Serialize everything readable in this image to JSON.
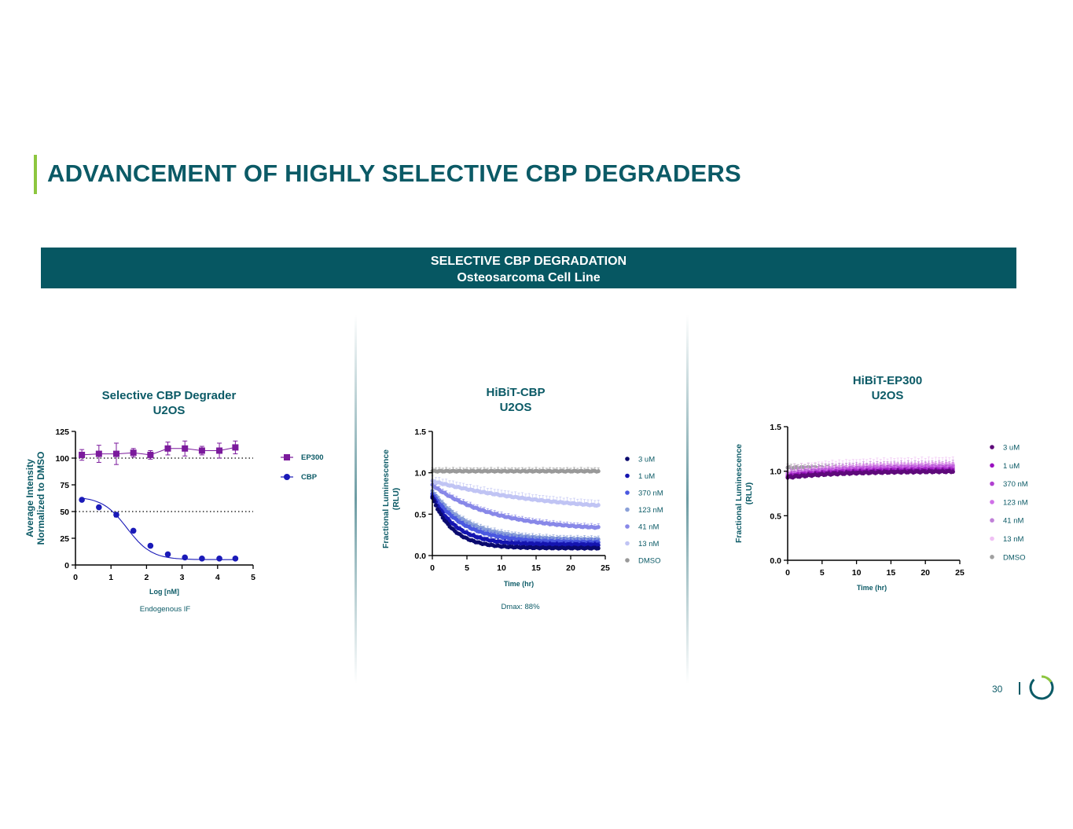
{
  "page": {
    "title": "ADVANCEMENT OF HIGHLY SELECTIVE CBP DEGRADERS",
    "banner_line1": "SELECTIVE CBP DEGRADATION",
    "banner_line2": "Osteosarcoma Cell Line",
    "page_number": "30",
    "colors": {
      "brand": "#0b5a66",
      "accent": "#8dc63f",
      "banner": "#065762"
    }
  },
  "chart_data": [
    {
      "type": "scatter",
      "title": [
        "Selective CBP Degrader",
        "U2OS"
      ],
      "xlabel": "Log [nM]",
      "ylabel": [
        "Average Intensity",
        "Normalized to DMSO"
      ],
      "xlim": [
        0,
        5
      ],
      "ylim": [
        0,
        125
      ],
      "xticks": [
        "0",
        "1",
        "2",
        "3",
        "4",
        "5"
      ],
      "yticks": [
        "0",
        "25",
        "50",
        "75",
        "100",
        "125"
      ],
      "note": "Endogenous IF",
      "reference_lines": [
        100,
        50
      ],
      "series": [
        {
          "name": "EP300",
          "color": "#7b1a9c",
          "marker": "square",
          "x": [
            0.18,
            0.66,
            1.15,
            1.63,
            2.11,
            2.6,
            3.08,
            3.56,
            4.05,
            4.5
          ],
          "y": [
            103,
            104,
            104,
            105,
            103,
            109,
            109,
            107,
            107,
            110
          ],
          "err": [
            5,
            8,
            10,
            4,
            4,
            6,
            7,
            4,
            7,
            6
          ]
        },
        {
          "name": "CBP",
          "color": "#1a1ab8",
          "marker": "circle",
          "x": [
            0.18,
            0.66,
            1.15,
            1.63,
            2.11,
            2.6,
            3.08,
            3.56,
            4.05,
            4.5
          ],
          "y": [
            61,
            54,
            47,
            32,
            18,
            10,
            7,
            6,
            6,
            6
          ],
          "err": [
            0,
            0,
            2,
            1,
            1,
            1,
            0,
            0,
            0,
            0
          ]
        }
      ]
    },
    {
      "type": "scatter",
      "title": [
        "HiBiT-CBP",
        "U2OS"
      ],
      "xlabel": "Time (hr)",
      "ylabel": [
        "Fractional Luminescence",
        "(RLU)"
      ],
      "xlim": [
        0,
        25
      ],
      "ylim": [
        0,
        1.5
      ],
      "xticks": [
        "0",
        "5",
        "10",
        "15",
        "20",
        "25"
      ],
      "yticks": [
        "0.0",
        "0.5",
        "1.0",
        "1.5"
      ],
      "note": "Dmax: 88%",
      "series": [
        {
          "name": "3 uM",
          "color": "#0a0a6e",
          "start": 0.7,
          "plateau": 0.09,
          "tau": 3.0,
          "err": 0.02
        },
        {
          "name": "1 uM",
          "color": "#1414b0",
          "start": 0.72,
          "plateau": 0.13,
          "tau": 3.5,
          "err": 0.03
        },
        {
          "name": "370 nM",
          "color": "#4a58e0",
          "start": 0.75,
          "plateau": 0.16,
          "tau": 4.5,
          "err": 0.04
        },
        {
          "name": "123 nM",
          "color": "#8aa0d8",
          "start": 0.78,
          "plateau": 0.19,
          "tau": 5.0,
          "err": 0.04
        },
        {
          "name": "41 nM",
          "color": "#8888e8",
          "start": 0.85,
          "plateau": 0.3,
          "tau": 9.0,
          "err": 0.04
        },
        {
          "name": "13 nM",
          "color": "#c0c4f4",
          "start": 0.9,
          "plateau": 0.5,
          "tau": 18.0,
          "err": 0.06
        },
        {
          "name": "DMSO",
          "color": "#999999",
          "start": 1.02,
          "plateau": 1.02,
          "tau": 1.0,
          "err": 0.04
        }
      ]
    },
    {
      "type": "scatter",
      "title": [
        "HiBiT-EP300",
        "U2OS"
      ],
      "xlabel": "Time (hr)",
      "ylabel": [
        "Fractional Luminescence",
        "(RLU)"
      ],
      "xlim": [
        0,
        25
      ],
      "ylim": [
        0,
        1.5
      ],
      "xticks": [
        "0",
        "5",
        "10",
        "15",
        "20",
        "25"
      ],
      "yticks": [
        "0.0",
        "0.5",
        "1.0",
        "1.5"
      ],
      "series": [
        {
          "name": "3 uM",
          "color": "#5e0a7a",
          "start": 0.93,
          "plateau": 1.0,
          "tau": 8.0,
          "err": 0.03
        },
        {
          "name": "1 uM",
          "color": "#9a10c0",
          "start": 0.94,
          "plateau": 1.01,
          "tau": 8.0,
          "err": 0.03
        },
        {
          "name": "370 nM",
          "color": "#b040d0",
          "start": 0.95,
          "plateau": 1.03,
          "tau": 8.0,
          "err": 0.04
        },
        {
          "name": "123 nM",
          "color": "#d070e8",
          "start": 0.96,
          "plateau": 1.05,
          "tau": 8.0,
          "err": 0.05
        },
        {
          "name": "41 nM",
          "color": "#c080d8",
          "start": 0.97,
          "plateau": 1.06,
          "tau": 8.0,
          "err": 0.06
        },
        {
          "name": "13 nM",
          "color": "#f0c0f4",
          "start": 0.98,
          "plateau": 1.08,
          "tau": 8.0,
          "err": 0.08
        },
        {
          "name": "DMSO",
          "color": "#a0a0a0",
          "start": 1.04,
          "plateau": 1.04,
          "tau": 1.0,
          "err": 0.04
        }
      ]
    }
  ]
}
